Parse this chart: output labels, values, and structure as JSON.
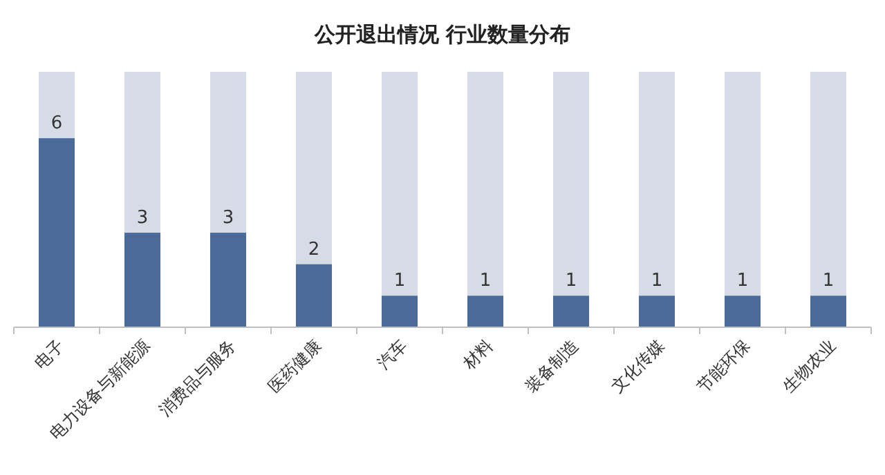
{
  "chart_data": {
    "type": "bar",
    "title": "公开退出情况 行业数量分布",
    "categories": [
      "电子",
      "电力设备与新能源",
      "消费品与服务",
      "医药健康",
      "汽车",
      "材料",
      "装备制造",
      "文化传媒",
      "节能环保",
      "生物农业"
    ],
    "series": [
      {
        "color": "#4a6b9a",
        "values": [
          6,
          3,
          3,
          2,
          1,
          1,
          1,
          1,
          1,
          1
        ]
      }
    ],
    "data_labels": true,
    "tick_labels": "x"
  }
}
